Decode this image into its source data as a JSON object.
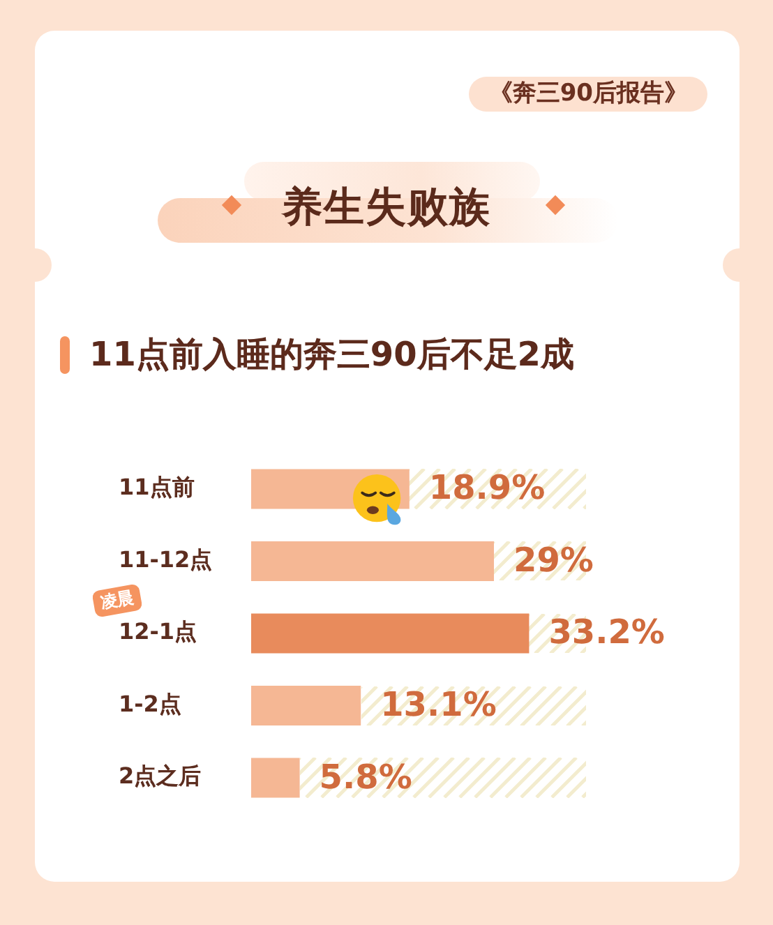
{
  "chart_data": {
    "type": "bar",
    "orientation": "horizontal",
    "title": "养生失败族",
    "subtitle": "11点前入睡的奔三90后不足2成",
    "categories": [
      "11点前",
      "11-12点",
      "12-1点",
      "1-2点",
      "2点之后"
    ],
    "values": [
      18.9,
      29,
      33.2,
      13.1,
      5.8
    ],
    "colors": [
      "#f5b794",
      "#f5b794",
      "#e88b5c",
      "#f5b794",
      "#f5b794"
    ],
    "value_labels": [
      "18.9%",
      "29%",
      "33.2%",
      "13.1%",
      "5.8%"
    ],
    "tick_labels": "y",
    "annotations": [
      "《奔三90后报告》",
      "凌晨"
    ]
  }
}
